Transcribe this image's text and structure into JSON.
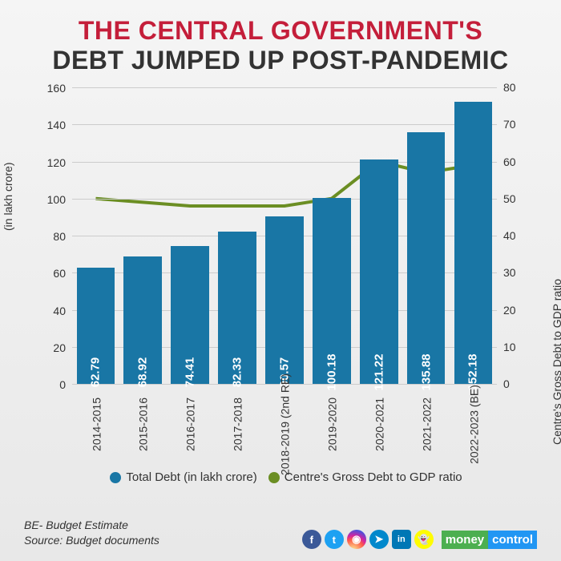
{
  "title": {
    "line1": "THE CENTRAL GOVERNMENT'S",
    "line2": "DEBT JUMPED UP POST-PANDEMIC",
    "line1_color": "#c41e3a",
    "line2_color": "#333333",
    "fontsize": 32
  },
  "chart": {
    "type": "bar+line",
    "background": "#f0f0f0",
    "left_axis": {
      "title": "(in lakh crore)",
      "min": 0,
      "max": 160,
      "step": 20,
      "ticks": [
        0,
        20,
        40,
        60,
        80,
        100,
        120,
        140,
        160
      ]
    },
    "right_axis": {
      "title": "Centre's Gross Debt to GDP ratio",
      "min": 0,
      "max": 80,
      "step": 10,
      "ticks": [
        0,
        10,
        20,
        30,
        40,
        50,
        60,
        70,
        80
      ]
    },
    "categories": [
      "2014-2015",
      "2015-2016",
      "2016-2017",
      "2017-2018",
      "2018-2019 (2nd RE)",
      "2019-2020",
      "2020-2021",
      "2021-2022",
      "2022-2023 (BE)"
    ],
    "bars": {
      "values": [
        62.79,
        68.92,
        74.41,
        82.33,
        90.57,
        100.18,
        121.22,
        135.88,
        152.18
      ],
      "color": "#1976a5",
      "value_label_color": "#ffffff",
      "value_label_fontsize": 15
    },
    "line": {
      "values": [
        50,
        49,
        48,
        48,
        48,
        50,
        60,
        57,
        59
      ],
      "color": "#6b8e23",
      "stroke_width": 4
    },
    "grid_color": "#cccccc",
    "x_label_fontsize": 14
  },
  "legend": {
    "items": [
      {
        "label": "Total Debt (in lakh crore)",
        "color": "#1976a5"
      },
      {
        "label": "Centre's Gross Debt to GDP ratio",
        "color": "#6b8e23"
      }
    ],
    "fontsize": 15
  },
  "footer": {
    "note1": "BE- Budget Estimate",
    "note2": "Source: Budget documents",
    "icons": [
      {
        "name": "facebook",
        "bg": "#3b5998",
        "glyph": "f"
      },
      {
        "name": "twitter",
        "bg": "#1da1f2",
        "glyph": "t"
      },
      {
        "name": "instagram",
        "bg": "radial-gradient(circle at 30% 110%,#fdf497 0%,#fd5949 45%,#d6249f 60%,#285AEB 90%)",
        "glyph": "◉"
      },
      {
        "name": "telegram",
        "bg": "#0088cc",
        "glyph": "➤"
      },
      {
        "name": "linkedin",
        "bg": "#0077b5",
        "glyph": "in"
      },
      {
        "name": "snapchat",
        "bg": "#fffc00",
        "glyph": "👻"
      }
    ],
    "logo": {
      "part1": "money",
      "part2": "control"
    }
  }
}
